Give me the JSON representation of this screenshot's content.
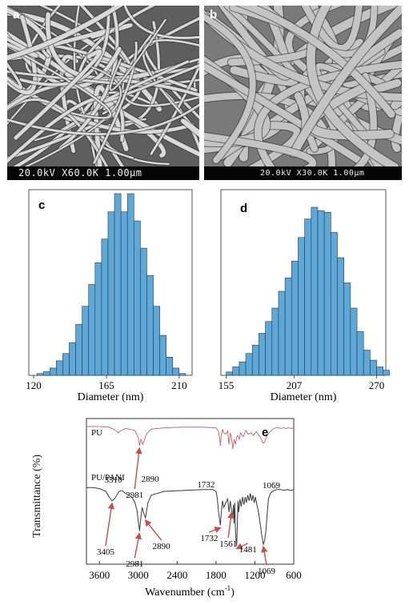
{
  "panels": {
    "a": {
      "letter": "a",
      "scale_bar": "20.0kV X60.0K 1.00μm"
    },
    "b": {
      "letter": "b",
      "scale_bar": "20.0kV X30.0K 1.00μm"
    }
  },
  "chart_data": [
    {
      "panel": "c",
      "type": "bar",
      "xlabel": "Diameter (nm)",
      "ylabel": "",
      "title": "",
      "xticks": [
        "120",
        "165",
        "210"
      ],
      "xlim": [
        117,
        218
      ],
      "bin_start": 122,
      "bin_width": 4,
      "values": [
        1,
        2,
        4,
        8,
        12,
        18,
        28,
        38,
        50,
        62,
        75,
        90,
        100,
        90,
        100,
        85,
        70,
        55,
        38,
        22,
        10,
        4,
        1,
        0,
        0,
        2
      ],
      "bar_color": "#5fa7d6",
      "ylim": [
        0,
        100
      ],
      "grid": false
    },
    {
      "panel": "d",
      "type": "bar",
      "xlabel": "Diameter (nm)",
      "ylabel": "",
      "title": "",
      "xticks": [
        "155",
        "207",
        "270"
      ],
      "xlim": [
        151,
        277
      ],
      "bin_start": 155,
      "bin_width": 5,
      "values": [
        2,
        5,
        8,
        13,
        18,
        25,
        32,
        40,
        50,
        58,
        68,
        82,
        93,
        100,
        98,
        97,
        85,
        70,
        55,
        40,
        26,
        15,
        9,
        5,
        3,
        2,
        1
      ],
      "bar_color": "#5fa7d6",
      "ylim": [
        0,
        100
      ],
      "grid": false
    },
    {
      "panel": "e",
      "type": "line",
      "xlabel": "Wavenumber (cm-1)",
      "ylabel": "Transmittance (%)",
      "title": "",
      "xlim": [
        3800,
        600
      ],
      "xticks": [
        "3600",
        "3000",
        "2400",
        "1800",
        "1200",
        "600"
      ],
      "series": [
        {
          "name": "PU",
          "color": "#c46f6f",
          "x": [
            3800,
            3600,
            3450,
            3380,
            3330,
            3310,
            3280,
            3200,
            3050,
            3000,
            2981,
            2960,
            2930,
            2890,
            2860,
            2800,
            2600,
            2300,
            2000,
            1800,
            1760,
            1740,
            1732,
            1720,
            1700,
            1680,
            1650,
            1620,
            1600,
            1580,
            1560,
            1540,
            1520,
            1500,
            1480,
            1460,
            1440,
            1420,
            1380,
            1340,
            1300,
            1260,
            1220,
            1180,
            1150,
            1120,
            1100,
            1085,
            1069,
            1050,
            1030,
            1000,
            960,
            920,
            880,
            840,
            800,
            760,
            720,
            680,
            640,
            600
          ],
          "y": [
            90,
            90,
            89,
            86,
            82,
            80,
            83,
            87,
            84,
            72,
            60,
            70,
            62,
            74,
            80,
            86,
            88,
            89,
            89,
            88,
            82,
            68,
            60,
            74,
            86,
            80,
            78,
            83,
            62,
            80,
            72,
            55,
            70,
            62,
            74,
            76,
            70,
            80,
            74,
            84,
            78,
            80,
            76,
            82,
            78,
            74,
            70,
            66,
            64,
            66,
            72,
            78,
            82,
            86,
            88,
            88,
            87,
            88,
            87,
            88,
            87,
            88
          ]
        },
        {
          "name": "PU/PANI",
          "color": "#3a3a3a",
          "x": [
            3800,
            3700,
            3600,
            3500,
            3450,
            3405,
            3370,
            3330,
            3300,
            3250,
            3200,
            3100,
            3050,
            3020,
            3000,
            2981,
            2960,
            2940,
            2920,
            2900,
            2890,
            2870,
            2850,
            2800,
            2600,
            2300,
            2000,
            1850,
            1800,
            1780,
            1760,
            1740,
            1732,
            1720,
            1700,
            1680,
            1650,
            1620,
            1600,
            1580,
            1561,
            1545,
            1530,
            1520,
            1510,
            1500,
            1490,
            1481,
            1470,
            1460,
            1450,
            1430,
            1410,
            1390,
            1370,
            1350,
            1330,
            1310,
            1290,
            1270,
            1250,
            1230,
            1210,
            1190,
            1170,
            1150,
            1130,
            1110,
            1090,
            1069,
            1050,
            1030,
            1010,
            990,
            960,
            930,
            900,
            850,
            800,
            750,
            700,
            650,
            600
          ],
          "y": [
            76,
            76,
            75,
            72,
            66,
            62,
            64,
            68,
            72,
            73,
            70,
            66,
            60,
            52,
            40,
            30,
            44,
            55,
            50,
            46,
            44,
            52,
            60,
            68,
            72,
            73,
            74,
            74,
            72,
            64,
            50,
            40,
            36,
            48,
            62,
            55,
            60,
            64,
            50,
            62,
            52,
            44,
            58,
            38,
            60,
            30,
            20,
            14,
            40,
            62,
            50,
            64,
            56,
            66,
            58,
            66,
            60,
            68,
            62,
            70,
            62,
            68,
            60,
            66,
            58,
            52,
            44,
            34,
            24,
            16,
            20,
            30,
            48,
            64,
            70,
            72,
            73,
            74,
            74,
            73,
            74,
            73,
            74
          ]
        }
      ],
      "annotations": [
        {
          "text": "PU",
          "series": "PU"
        },
        {
          "text": "PU/PANI",
          "series": "PU/PANI"
        },
        {
          "text": "3310",
          "series": "PU",
          "wn": 3310,
          "arrow": false
        },
        {
          "text": "2981",
          "series": "PU",
          "wn": 2981,
          "arrow": true
        },
        {
          "text": "2890",
          "series": "PU",
          "wn": 2890,
          "arrow": false
        },
        {
          "text": "1732",
          "series": "PU",
          "wn": 1732,
          "arrow": false
        },
        {
          "text": "1069",
          "series": "PU",
          "wn": 1069,
          "arrow": false
        },
        {
          "text": "3405",
          "series": "PU/PANI",
          "wn": 3405,
          "arrow": true
        },
        {
          "text": "2981",
          "series": "PU/PANI",
          "wn": 2981,
          "arrow": true
        },
        {
          "text": "2890",
          "series": "PU/PANI",
          "wn": 2890,
          "arrow": true
        },
        {
          "text": "1732",
          "series": "PU/PANI",
          "wn": 1732,
          "arrow": true
        },
        {
          "text": "1561",
          "series": "PU/PANI",
          "wn": 1561,
          "arrow": true
        },
        {
          "text": "1481",
          "series": "PU/PANI",
          "wn": 1481,
          "arrow": true
        },
        {
          "text": "1069",
          "series": "PU/PANI",
          "wn": 1069,
          "arrow": true
        }
      ],
      "panel_letter": "e",
      "arrow_color": "#c0504d"
    }
  ]
}
